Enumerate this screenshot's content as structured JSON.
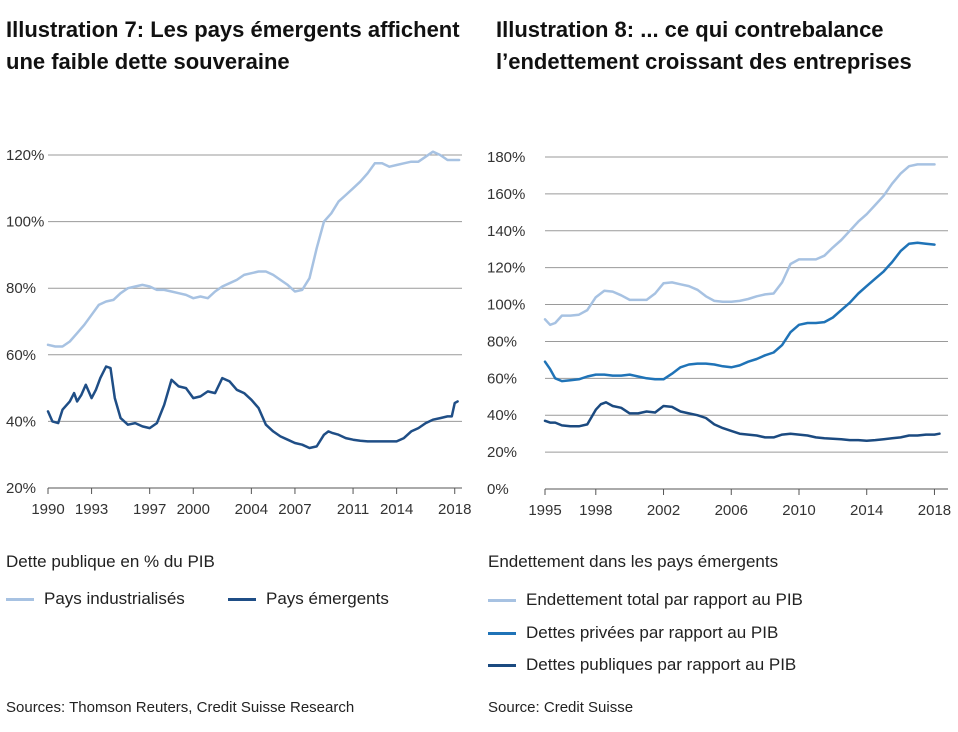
{
  "chart_data": [
    {
      "type": "line",
      "title": "Illustration 7: Les pays émergents affichent une faible dette souveraine",
      "caption": "Dette publique en % du PIB",
      "source": "Sources: Thomson Reuters, Credit Suisse Research",
      "xlim": [
        1990,
        2018.5
      ],
      "ylim": [
        20,
        120
      ],
      "x_ticks": [
        1990,
        1993,
        1997,
        2000,
        2004,
        2007,
        2011,
        2014,
        2018
      ],
      "y_ticks": [
        20,
        40,
        60,
        80,
        100,
        120
      ],
      "y_tick_labels": [
        "20%",
        "40%",
        "60%",
        "80%",
        "100%",
        "120%"
      ],
      "grid": "horizontal",
      "legend": "bottom",
      "series": [
        {
          "name": "Pays industrialisés",
          "color": "#a7c2e2",
          "x": [
            1990,
            1990.5,
            1991,
            1991.5,
            1992,
            1992.5,
            1993,
            1993.5,
            1994,
            1994.5,
            1995,
            1995.5,
            1996,
            1996.5,
            1997,
            1997.5,
            1998,
            1998.5,
            1999,
            1999.5,
            2000,
            2000.5,
            2001,
            2001.5,
            2002,
            2002.5,
            2003,
            2003.5,
            2004,
            2004.5,
            2005,
            2005.5,
            2006,
            2006.5,
            2007,
            2007.5,
            2008,
            2008.5,
            2009,
            2009.5,
            2010,
            2010.5,
            2011,
            2011.5,
            2012,
            2012.5,
            2013,
            2013.5,
            2014,
            2014.5,
            2015,
            2015.5,
            2016,
            2016.5,
            2017,
            2017.5,
            2018,
            2018.3
          ],
          "values": [
            63,
            62.5,
            62.5,
            64,
            66.5,
            69,
            72,
            75,
            76,
            76.5,
            78.5,
            80,
            80.5,
            81,
            80.5,
            79.5,
            79.5,
            79,
            78.5,
            78,
            77,
            77.5,
            77,
            79,
            80.5,
            81.5,
            82.5,
            84,
            84.5,
            85,
            85,
            84,
            82.5,
            81,
            79,
            79.5,
            83,
            92,
            100,
            102.5,
            106,
            108,
            110,
            112,
            114.5,
            117.5,
            117.5,
            116.5,
            117,
            117.5,
            118,
            118,
            119.5,
            121,
            120,
            118.5,
            118.5,
            118.5
          ]
        },
        {
          "name": "Pays émergents",
          "color": "#1f4e86",
          "x": [
            1990,
            1990.3,
            1990.7,
            1991,
            1991.5,
            1991.8,
            1992,
            1992.3,
            1992.6,
            1993,
            1993.3,
            1993.6,
            1994,
            1994.3,
            1994.6,
            1995,
            1995.5,
            1996,
            1996.5,
            1997,
            1997.5,
            1998,
            1998.5,
            1999,
            1999.5,
            2000,
            2000.5,
            2001,
            2001.5,
            2002,
            2002.5,
            2003,
            2003.5,
            2004,
            2004.5,
            2005,
            2005.5,
            2006,
            2006.5,
            2007,
            2007.5,
            2008,
            2008.5,
            2009,
            2009.3,
            2009.6,
            2010,
            2010.5,
            2011,
            2011.5,
            2012,
            2012.5,
            2013,
            2013.5,
            2014,
            2014.5,
            2015,
            2015.5,
            2016,
            2016.5,
            2017,
            2017.5,
            2017.8,
            2018,
            2018.2
          ],
          "values": [
            43,
            40,
            39.5,
            43.5,
            46,
            48.5,
            46,
            48,
            51,
            47,
            49.5,
            53,
            56.5,
            56,
            47,
            41,
            39,
            39.5,
            38.5,
            38,
            39.5,
            45,
            52.5,
            50.5,
            50,
            47,
            47.5,
            49,
            48.5,
            53,
            52,
            49.5,
            48.5,
            46.5,
            44,
            39,
            37,
            35.5,
            34.5,
            33.5,
            33,
            32,
            32.5,
            36,
            37,
            36.5,
            36,
            35,
            34.5,
            34.2,
            34,
            34,
            34,
            34,
            34,
            35,
            37,
            38,
            39.5,
            40.5,
            41,
            41.5,
            41.5,
            45.5,
            46
          ]
        }
      ]
    },
    {
      "type": "line",
      "title": "Illustration 8: ... ce qui contrebalance l’endettement croissant des entreprises",
      "caption": "Endettement dans les pays émergents",
      "source": "Source: Credit Suisse",
      "xlim": [
        1995,
        2018.8
      ],
      "ylim": [
        0,
        180
      ],
      "x_ticks": [
        1995,
        1998,
        2002,
        2006,
        2010,
        2014,
        2018
      ],
      "y_ticks": [
        0,
        20,
        40,
        60,
        80,
        100,
        120,
        140,
        160,
        180
      ],
      "y_tick_labels": [
        "0%",
        "20%",
        "40%",
        "60%",
        "80%",
        "100%",
        "120%",
        "140%",
        "160%",
        "180%"
      ],
      "grid": "horizontal",
      "legend": "bottom",
      "series": [
        {
          "name": "Endettement total par rapport au PIB",
          "color": "#a7c2e2",
          "x": [
            1995,
            1995.3,
            1995.6,
            1996,
            1996.5,
            1997,
            1997.5,
            1998,
            1998.5,
            1999,
            1999.5,
            2000,
            2000.5,
            2001,
            2001.5,
            2002,
            2002.5,
            2003,
            2003.5,
            2004,
            2004.5,
            2005,
            2005.5,
            2006,
            2006.5,
            2007,
            2007.5,
            2008,
            2008.5,
            2009,
            2009.5,
            2010,
            2010.5,
            2011,
            2011.5,
            2012,
            2012.5,
            2013,
            2013.5,
            2014,
            2014.5,
            2015,
            2015.5,
            2016,
            2016.5,
            2017,
            2017.5,
            2018
          ],
          "values": [
            92,
            89,
            90,
            94,
            94,
            94.5,
            97,
            104,
            107.5,
            107,
            105,
            102.5,
            102.5,
            102.5,
            106,
            111.5,
            112,
            111,
            110,
            108,
            104.5,
            102,
            101.5,
            101.5,
            102,
            103,
            104.5,
            105.5,
            106,
            112,
            122,
            124.5,
            124.5,
            124.5,
            126.5,
            131,
            135,
            140,
            145,
            149,
            154,
            159,
            165.5,
            171,
            175,
            176,
            176,
            176
          ]
        },
        {
          "name": "Dettes privées par rapport au PIB",
          "color": "#1f73b7",
          "x": [
            1995,
            1995.3,
            1995.6,
            1996,
            1996.5,
            1997,
            1997.5,
            1998,
            1998.5,
            1999,
            1999.5,
            2000,
            2000.5,
            2001,
            2001.5,
            2002,
            2002.5,
            2003,
            2003.5,
            2004,
            2004.5,
            2005,
            2005.5,
            2006,
            2006.5,
            2007,
            2007.5,
            2008,
            2008.5,
            2009,
            2009.5,
            2010,
            2010.5,
            2011,
            2011.5,
            2012,
            2012.5,
            2013,
            2013.5,
            2014,
            2014.5,
            2015,
            2015.5,
            2016,
            2016.5,
            2017,
            2017.5,
            2018
          ],
          "values": [
            69,
            65,
            60,
            58.5,
            59,
            59.5,
            61,
            62,
            62,
            61.5,
            61.5,
            62,
            61,
            60,
            59.5,
            59.5,
            62.5,
            66,
            67.5,
            68,
            68,
            67.5,
            66.5,
            66,
            67,
            69,
            70.5,
            72.5,
            74,
            78,
            85,
            89,
            90,
            90,
            90.5,
            93,
            97,
            101,
            106,
            110,
            114,
            118,
            123,
            129,
            133,
            133.5,
            133,
            132.5
          ]
        },
        {
          "name": "Dettes publiques par rapport au PIB",
          "color": "#1b4a80",
          "x": [
            1995,
            1995.3,
            1995.6,
            1996,
            1996.5,
            1997,
            1997.5,
            1998,
            1998.3,
            1998.6,
            1999,
            1999.5,
            2000,
            2000.5,
            2001,
            2001.5,
            2002,
            2002.5,
            2003,
            2003.5,
            2004,
            2004.5,
            2005,
            2005.5,
            2006,
            2006.5,
            2007,
            2007.5,
            2008,
            2008.5,
            2009,
            2009.5,
            2010,
            2010.5,
            2011,
            2011.5,
            2012,
            2012.5,
            2013,
            2013.5,
            2014,
            2014.5,
            2015,
            2015.5,
            2016,
            2016.5,
            2017,
            2017.5,
            2018,
            2018.3
          ],
          "values": [
            37,
            36,
            36,
            34.5,
            34,
            34,
            35,
            43,
            46,
            47,
            45,
            44,
            41,
            41,
            42,
            41.5,
            45,
            44.5,
            42,
            41,
            40,
            38.5,
            35,
            33,
            31.5,
            30,
            29.5,
            29,
            28,
            28,
            29.5,
            30,
            29.5,
            29,
            28,
            27.5,
            27.2,
            27,
            26.5,
            26.5,
            26.2,
            26.5,
            27,
            27.5,
            28,
            29,
            29,
            29.5,
            29.5,
            30
          ]
        }
      ]
    }
  ]
}
